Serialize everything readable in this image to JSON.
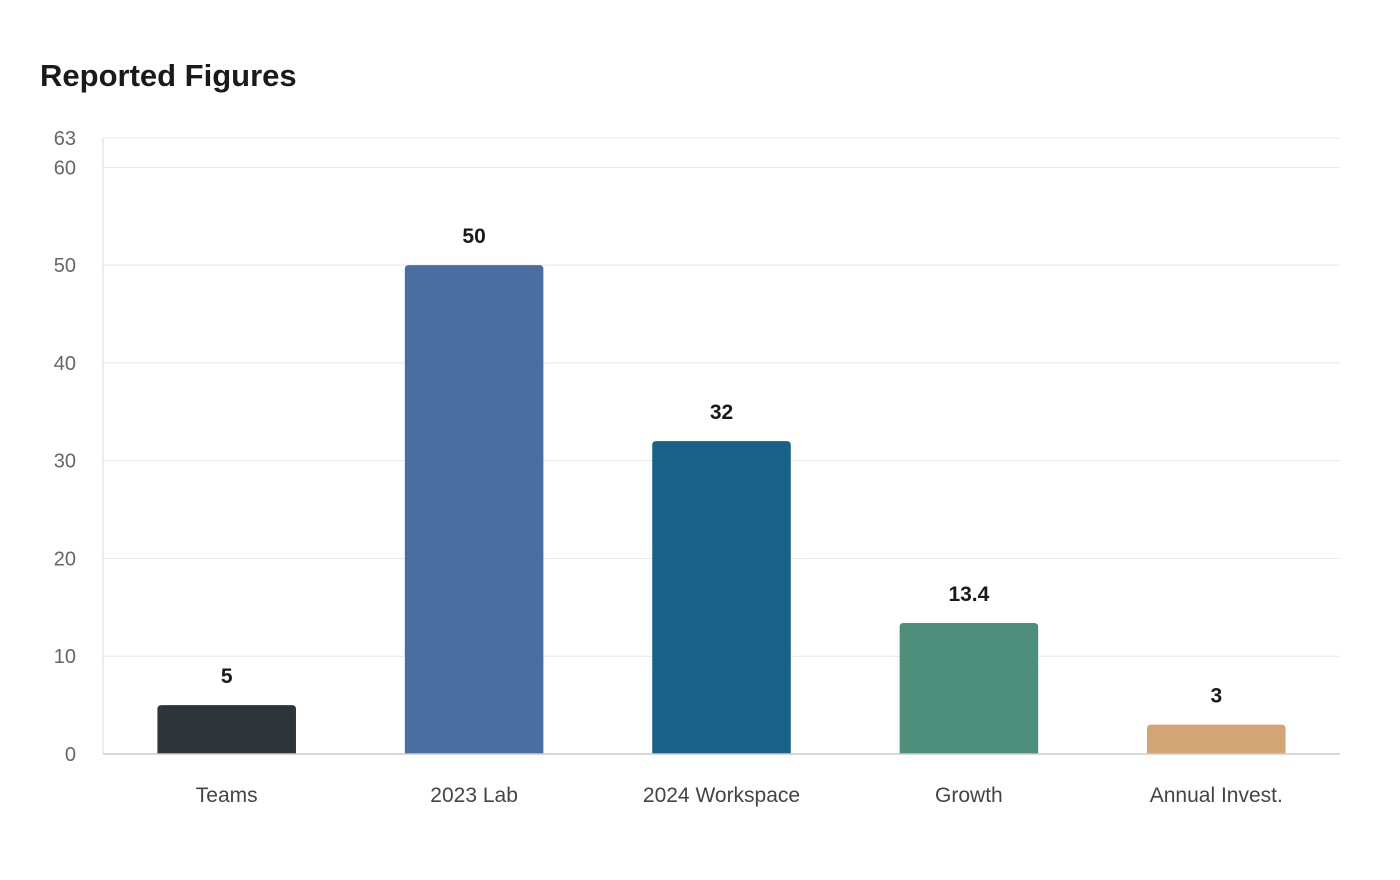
{
  "chart_data": {
    "type": "bar",
    "title": "Reported Figures",
    "xlabel": "",
    "ylabel": "",
    "categories": [
      "Teams",
      "2023 Lab",
      "2024 Workspace",
      "Growth",
      "Annual Invest."
    ],
    "values": [
      5,
      50,
      32,
      13.4,
      3
    ],
    "value_labels": [
      "5",
      "50",
      "32",
      "13.4",
      "3"
    ],
    "colors": [
      "#2d3538",
      "#4a6ea1",
      "#186187",
      "#4e8f7c",
      "#d4a574"
    ],
    "ylim": [
      0,
      63
    ],
    "yticks": [
      0,
      10,
      20,
      30,
      40,
      50,
      60,
      63
    ],
    "grid": true,
    "legend": "none"
  }
}
